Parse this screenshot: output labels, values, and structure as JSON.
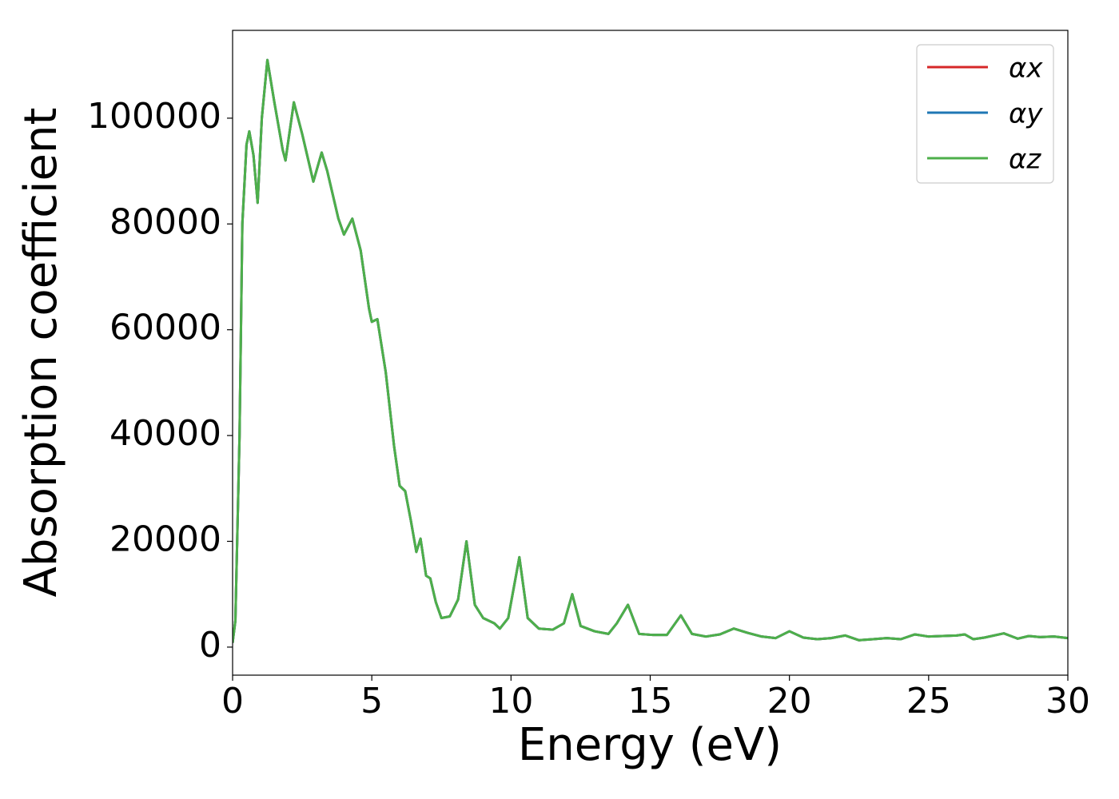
{
  "chart_data": {
    "type": "line",
    "xlabel": "Energy (eV)",
    "ylabel": "Absorption coefficient",
    "x": [
      0,
      0.1,
      0.25,
      0.35,
      0.5,
      0.6,
      0.75,
      0.9,
      1.05,
      1.25,
      1.5,
      1.8,
      1.9,
      2.2,
      2.5,
      2.9,
      3.2,
      3.4,
      3.8,
      4.0,
      4.3,
      4.6,
      4.9,
      5.0,
      5.2,
      5.5,
      5.8,
      6.0,
      6.2,
      6.4,
      6.6,
      6.75,
      6.95,
      7.1,
      7.3,
      7.5,
      7.8,
      8.1,
      8.4,
      8.7,
      9.0,
      9.4,
      9.6,
      9.9,
      10.3,
      10.6,
      11.0,
      11.5,
      11.9,
      12.2,
      12.5,
      13.0,
      13.5,
      13.8,
      14.2,
      14.6,
      15.1,
      15.6,
      16.1,
      16.5,
      17.0,
      17.5,
      18.0,
      18.5,
      19.0,
      19.5,
      20.0,
      20.5,
      21.0,
      21.5,
      22.0,
      22.5,
      23.0,
      23.5,
      24.0,
      24.5,
      25.0,
      25.5,
      26.0,
      26.3,
      26.6,
      27.0,
      27.7,
      28.2,
      28.6,
      29.0,
      29.5,
      30.0
    ],
    "series": [
      {
        "name": "αx",
        "color": "#d62728",
        "values": [
          800,
          5000,
          40000,
          80000,
          95000,
          97500,
          93000,
          84000,
          100000,
          111000,
          103000,
          94000,
          92000,
          103000,
          97000,
          88000,
          93500,
          90000,
          81000,
          78000,
          81000,
          75000,
          64000,
          61500,
          62000,
          52000,
          38000,
          30500,
          29500,
          24000,
          18000,
          20500,
          13500,
          13000,
          8500,
          5500,
          5800,
          9000,
          20000,
          8000,
          5500,
          4500,
          3500,
          5500,
          17000,
          5500,
          3500,
          3300,
          4500,
          10000,
          4000,
          3000,
          2500,
          4500,
          8000,
          2500,
          2300,
          2300,
          6000,
          2500,
          2000,
          2400,
          3500,
          2700,
          2000,
          1700,
          3000,
          1800,
          1500,
          1700,
          2200,
          1300,
          1500,
          1700,
          1500,
          2400,
          2000,
          2100,
          2200,
          2400,
          1500,
          1800,
          2600,
          1600,
          2100,
          1900,
          2000,
          1700
        ]
      },
      {
        "name": "αy",
        "color": "#1f77b4",
        "values": [
          800,
          5000,
          40000,
          80000,
          95000,
          97500,
          93000,
          84000,
          100000,
          111000,
          103000,
          94000,
          92000,
          103000,
          97000,
          88000,
          93500,
          90000,
          81000,
          78000,
          81000,
          75000,
          64000,
          61500,
          62000,
          52000,
          38000,
          30500,
          29500,
          24000,
          18000,
          20500,
          13500,
          13000,
          8500,
          5500,
          5800,
          9000,
          20000,
          8000,
          5500,
          4500,
          3500,
          5500,
          17000,
          5500,
          3500,
          3300,
          4500,
          10000,
          4000,
          3000,
          2500,
          4500,
          8000,
          2500,
          2300,
          2300,
          6000,
          2500,
          2000,
          2400,
          3500,
          2700,
          2000,
          1700,
          3000,
          1800,
          1500,
          1700,
          2200,
          1300,
          1500,
          1700,
          1500,
          2400,
          2000,
          2100,
          2200,
          2400,
          1500,
          1800,
          2600,
          1600,
          2100,
          1900,
          2000,
          1700
        ]
      },
      {
        "name": "αz",
        "color": "#4daf4a",
        "values": [
          800,
          5000,
          40000,
          80000,
          95000,
          97500,
          93000,
          84000,
          100000,
          111000,
          103000,
          94000,
          92000,
          103000,
          97000,
          88000,
          93500,
          90000,
          81000,
          78000,
          81000,
          75000,
          64000,
          61500,
          62000,
          52000,
          38000,
          30500,
          29500,
          24000,
          18000,
          20500,
          13500,
          13000,
          8500,
          5500,
          5800,
          9000,
          20000,
          8000,
          5500,
          4500,
          3500,
          5500,
          17000,
          5500,
          3500,
          3300,
          4500,
          10000,
          4000,
          3000,
          2500,
          4500,
          8000,
          2500,
          2300,
          2300,
          6000,
          2500,
          2000,
          2400,
          3500,
          2700,
          2000,
          1700,
          3000,
          1800,
          1500,
          1700,
          2200,
          1300,
          1500,
          1700,
          1500,
          2400,
          2000,
          2100,
          2200,
          2400,
          1500,
          1800,
          2600,
          1600,
          2100,
          1900,
          2000,
          1700
        ]
      }
    ],
    "xlim": [
      0,
      30
    ],
    "xticks": [
      0,
      5,
      10,
      15,
      20,
      25,
      30
    ],
    "ylim": [
      -5300,
      116600
    ],
    "yticks": [
      0,
      20000,
      40000,
      60000,
      80000,
      100000
    ],
    "legend": "upper right",
    "grid": false
  }
}
